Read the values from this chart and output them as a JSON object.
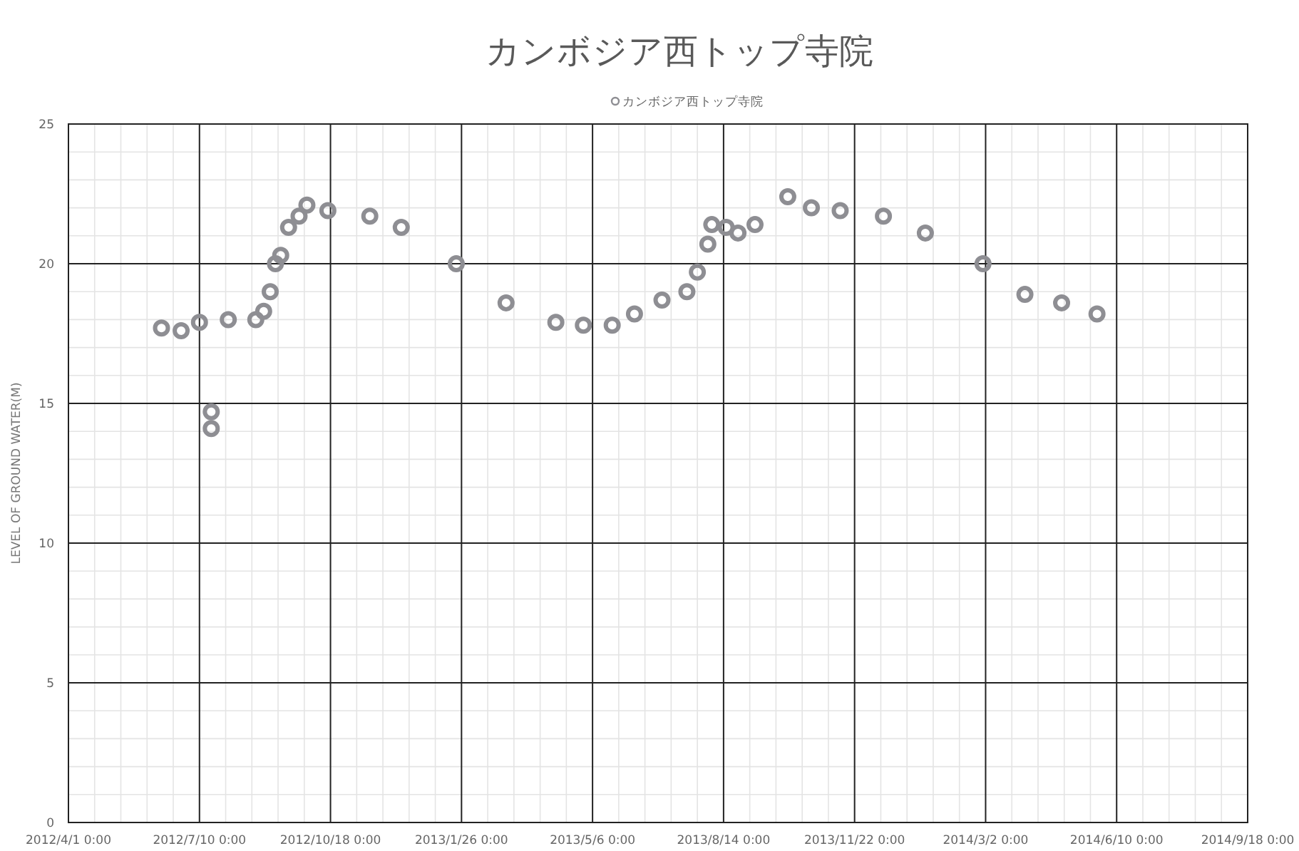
{
  "chart_data": {
    "type": "scatter",
    "title": "カンボジア西トップ寺院",
    "ylabel": "LEVEL OF GROUND WATER(M)",
    "xlim": [
      "2012-04-01",
      "2014-09-18"
    ],
    "xticks": [
      {
        "value": "2012-04-01",
        "label": "2012/4/1 0:00"
      },
      {
        "value": "2012-07-10",
        "label": "2012/7/10 0:00"
      },
      {
        "value": "2012-10-18",
        "label": "2012/10/18 0:00"
      },
      {
        "value": "2013-01-26",
        "label": "2013/1/26 0:00"
      },
      {
        "value": "2013-05-06",
        "label": "2013/5/6 0:00"
      },
      {
        "value": "2013-08-14",
        "label": "2013/8/14 0:00"
      },
      {
        "value": "2013-11-22",
        "label": "2013/11/22 0:00"
      },
      {
        "value": "2014-03-02",
        "label": "2014/3/2 0:00"
      },
      {
        "value": "2014-06-10",
        "label": "2014/6/10 0:00"
      },
      {
        "value": "2014-09-18",
        "label": "2014/9/18 0:00"
      }
    ],
    "ylim": [
      0,
      25
    ],
    "yticks": [
      0,
      5,
      10,
      15,
      20,
      25
    ],
    "grid": true,
    "legend": "top",
    "marker": "circle",
    "series": [
      {
        "name": "カンボジア西トップ寺院",
        "color": "#8e8e93",
        "x": [
          "2012-06-11",
          "2012-06-26",
          "2012-07-10",
          "2012-07-19",
          "2012-07-19",
          "2012-08-01",
          "2012-08-22",
          "2012-08-28",
          "2012-09-02",
          "2012-09-06",
          "2012-09-10",
          "2012-09-16",
          "2012-09-24",
          "2012-09-30",
          "2012-10-16",
          "2012-11-17",
          "2012-12-11",
          "2013-01-22",
          "2013-03-01",
          "2013-04-08",
          "2013-04-29",
          "2013-05-21",
          "2013-06-07",
          "2013-06-28",
          "2013-07-17",
          "2013-07-25",
          "2013-08-02",
          "2013-08-05",
          "2013-08-16",
          "2013-08-25",
          "2013-09-07",
          "2013-10-02",
          "2013-10-20",
          "2013-11-11",
          "2013-12-14",
          "2014-01-15",
          "2014-02-28",
          "2014-04-01",
          "2014-04-29",
          "2014-05-26"
        ],
        "values": [
          17.7,
          17.6,
          17.9,
          14.7,
          14.1,
          18.0,
          18.0,
          18.3,
          19.0,
          20.0,
          20.3,
          21.3,
          21.7,
          22.1,
          21.9,
          21.7,
          21.3,
          20.0,
          18.6,
          17.9,
          17.8,
          17.8,
          18.2,
          18.7,
          19.0,
          19.7,
          20.7,
          21.4,
          21.3,
          21.1,
          21.4,
          22.4,
          22.0,
          21.9,
          21.7,
          21.1,
          20.0,
          18.9,
          18.6,
          18.2
        ]
      }
    ]
  }
}
